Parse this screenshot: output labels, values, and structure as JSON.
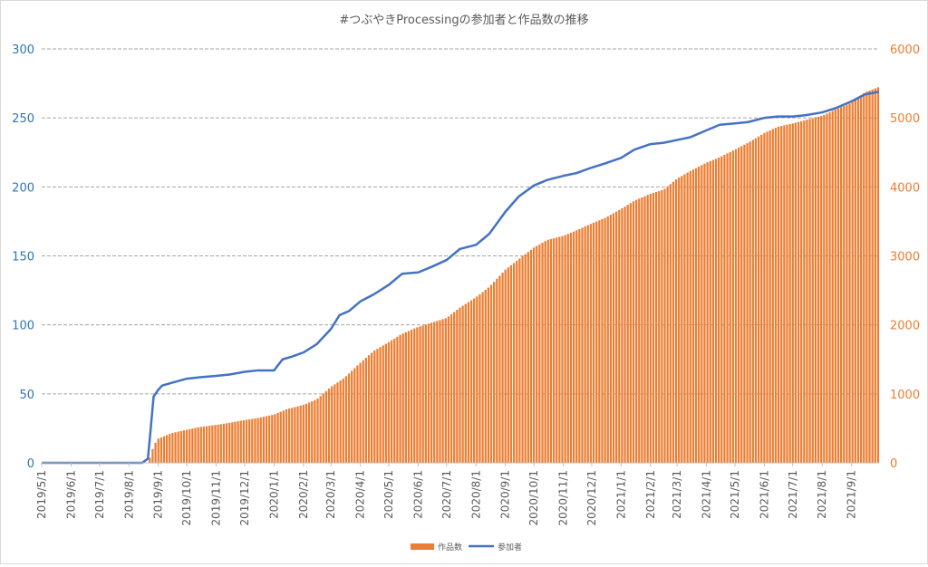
{
  "chart_data": {
    "type": "bar+line",
    "title": "#つぶやきProcessingの参加者と作品数の推移",
    "xlabel": "",
    "y_left": {
      "ticks": [
        0,
        50,
        100,
        150,
        200,
        250,
        300
      ],
      "ylim": [
        0,
        300
      ],
      "color": "#2e75b6"
    },
    "y_right": {
      "ticks": [
        0,
        1000,
        2000,
        3000,
        4000,
        5000,
        6000
      ],
      "ylim": [
        0,
        6000
      ],
      "color": "#ed7d31"
    },
    "x_axis": {
      "start": "2019-05-01",
      "end": "2021-09-30",
      "tick_labels": [
        "2019/5/1",
        "2019/6/1",
        "2019/7/1",
        "2019/8/1",
        "2019/9/1",
        "2019/10/1",
        "2019/11/1",
        "2019/12/1",
        "2020/1/1",
        "2020/2/1",
        "2020/3/1",
        "2020/4/1",
        "2020/5/1",
        "2020/6/1",
        "2020/7/1",
        "2020/8/1",
        "2020/9/1",
        "2020/10/1",
        "2020/11/1",
        "2020/12/1",
        "2021/1/1",
        "2021/2/1",
        "2021/3/1",
        "2021/4/1",
        "2021/5/1",
        "2021/6/1",
        "2021/7/1",
        "2021/8/1",
        "2021/9/1"
      ]
    },
    "grid": true,
    "legend_position": "bottom",
    "series": [
      {
        "name": "作品数",
        "kind": "bar",
        "axis": "right",
        "color": "#ed7d31",
        "points": [
          [
            "2019-05-01",
            0
          ],
          [
            "2019-08-20",
            0
          ],
          [
            "2019-08-24",
            100
          ],
          [
            "2019-08-27",
            250
          ],
          [
            "2019-09-01",
            350
          ],
          [
            "2019-09-15",
            430
          ],
          [
            "2019-10-01",
            480
          ],
          [
            "2019-10-15",
            520
          ],
          [
            "2019-11-01",
            550
          ],
          [
            "2019-11-15",
            580
          ],
          [
            "2019-12-01",
            620
          ],
          [
            "2019-12-15",
            650
          ],
          [
            "2020-01-01",
            700
          ],
          [
            "2020-01-15",
            780
          ],
          [
            "2020-02-01",
            840
          ],
          [
            "2020-02-15",
            920
          ],
          [
            "2020-03-01",
            1100
          ],
          [
            "2020-03-15",
            1230
          ],
          [
            "2020-04-01",
            1450
          ],
          [
            "2020-04-15",
            1620
          ],
          [
            "2020-05-01",
            1750
          ],
          [
            "2020-05-15",
            1870
          ],
          [
            "2020-06-01",
            1970
          ],
          [
            "2020-06-15",
            2030
          ],
          [
            "2020-07-01",
            2100
          ],
          [
            "2020-07-15",
            2250
          ],
          [
            "2020-08-01",
            2400
          ],
          [
            "2020-08-15",
            2550
          ],
          [
            "2020-09-01",
            2800
          ],
          [
            "2020-09-15",
            2950
          ],
          [
            "2020-10-01",
            3120
          ],
          [
            "2020-10-15",
            3230
          ],
          [
            "2020-11-01",
            3290
          ],
          [
            "2020-11-15",
            3370
          ],
          [
            "2020-12-01",
            3470
          ],
          [
            "2020-12-15",
            3550
          ],
          [
            "2021-01-01",
            3680
          ],
          [
            "2021-01-15",
            3800
          ],
          [
            "2021-02-01",
            3900
          ],
          [
            "2021-02-15",
            3960
          ],
          [
            "2021-03-01",
            4120
          ],
          [
            "2021-03-15",
            4230
          ],
          [
            "2021-04-01",
            4350
          ],
          [
            "2021-04-15",
            4430
          ],
          [
            "2021-05-01",
            4540
          ],
          [
            "2021-05-15",
            4640
          ],
          [
            "2021-06-01",
            4780
          ],
          [
            "2021-06-15",
            4870
          ],
          [
            "2021-07-01",
            4920
          ],
          [
            "2021-07-15",
            4970
          ],
          [
            "2021-08-01",
            5030
          ],
          [
            "2021-08-15",
            5120
          ],
          [
            "2021-09-01",
            5220
          ],
          [
            "2021-09-15",
            5370
          ],
          [
            "2021-09-30",
            5450
          ]
        ]
      },
      {
        "name": "参加者",
        "kind": "line",
        "axis": "left",
        "color": "#4472c4",
        "points": [
          [
            "2019-05-01",
            0
          ],
          [
            "2019-08-15",
            0
          ],
          [
            "2019-08-21",
            3
          ],
          [
            "2019-08-24",
            25
          ],
          [
            "2019-08-27",
            48
          ],
          [
            "2019-09-01",
            53
          ],
          [
            "2019-09-05",
            56
          ],
          [
            "2019-09-15",
            58
          ],
          [
            "2019-10-01",
            61
          ],
          [
            "2019-10-15",
            62
          ],
          [
            "2019-11-01",
            63
          ],
          [
            "2019-11-15",
            64
          ],
          [
            "2019-12-01",
            66
          ],
          [
            "2019-12-15",
            67
          ],
          [
            "2020-01-01",
            67
          ],
          [
            "2020-01-10",
            75
          ],
          [
            "2020-01-20",
            77
          ],
          [
            "2020-02-01",
            80
          ],
          [
            "2020-02-15",
            86
          ],
          [
            "2020-03-01",
            97
          ],
          [
            "2020-03-10",
            107
          ],
          [
            "2020-03-20",
            110
          ],
          [
            "2020-04-01",
            117
          ],
          [
            "2020-04-15",
            122
          ],
          [
            "2020-05-01",
            129
          ],
          [
            "2020-05-15",
            137
          ],
          [
            "2020-06-01",
            138
          ],
          [
            "2020-06-15",
            142
          ],
          [
            "2020-07-01",
            147
          ],
          [
            "2020-07-15",
            155
          ],
          [
            "2020-08-01",
            158
          ],
          [
            "2020-08-15",
            166
          ],
          [
            "2020-09-01",
            182
          ],
          [
            "2020-09-15",
            193
          ],
          [
            "2020-10-01",
            201
          ],
          [
            "2020-10-15",
            205
          ],
          [
            "2020-11-01",
            208
          ],
          [
            "2020-11-15",
            210
          ],
          [
            "2020-12-01",
            214
          ],
          [
            "2020-12-15",
            217
          ],
          [
            "2021-01-01",
            221
          ],
          [
            "2021-01-15",
            227
          ],
          [
            "2021-02-01",
            231
          ],
          [
            "2021-02-15",
            232
          ],
          [
            "2021-03-01",
            234
          ],
          [
            "2021-03-15",
            236
          ],
          [
            "2021-04-01",
            241
          ],
          [
            "2021-04-15",
            245
          ],
          [
            "2021-05-01",
            246
          ],
          [
            "2021-05-15",
            247
          ],
          [
            "2021-06-01",
            250
          ],
          [
            "2021-06-15",
            251
          ],
          [
            "2021-07-01",
            251
          ],
          [
            "2021-07-15",
            252
          ],
          [
            "2021-08-01",
            254
          ],
          [
            "2021-08-15",
            257
          ],
          [
            "2021-09-01",
            262
          ],
          [
            "2021-09-15",
            267
          ],
          [
            "2021-09-30",
            269
          ]
        ]
      }
    ]
  }
}
